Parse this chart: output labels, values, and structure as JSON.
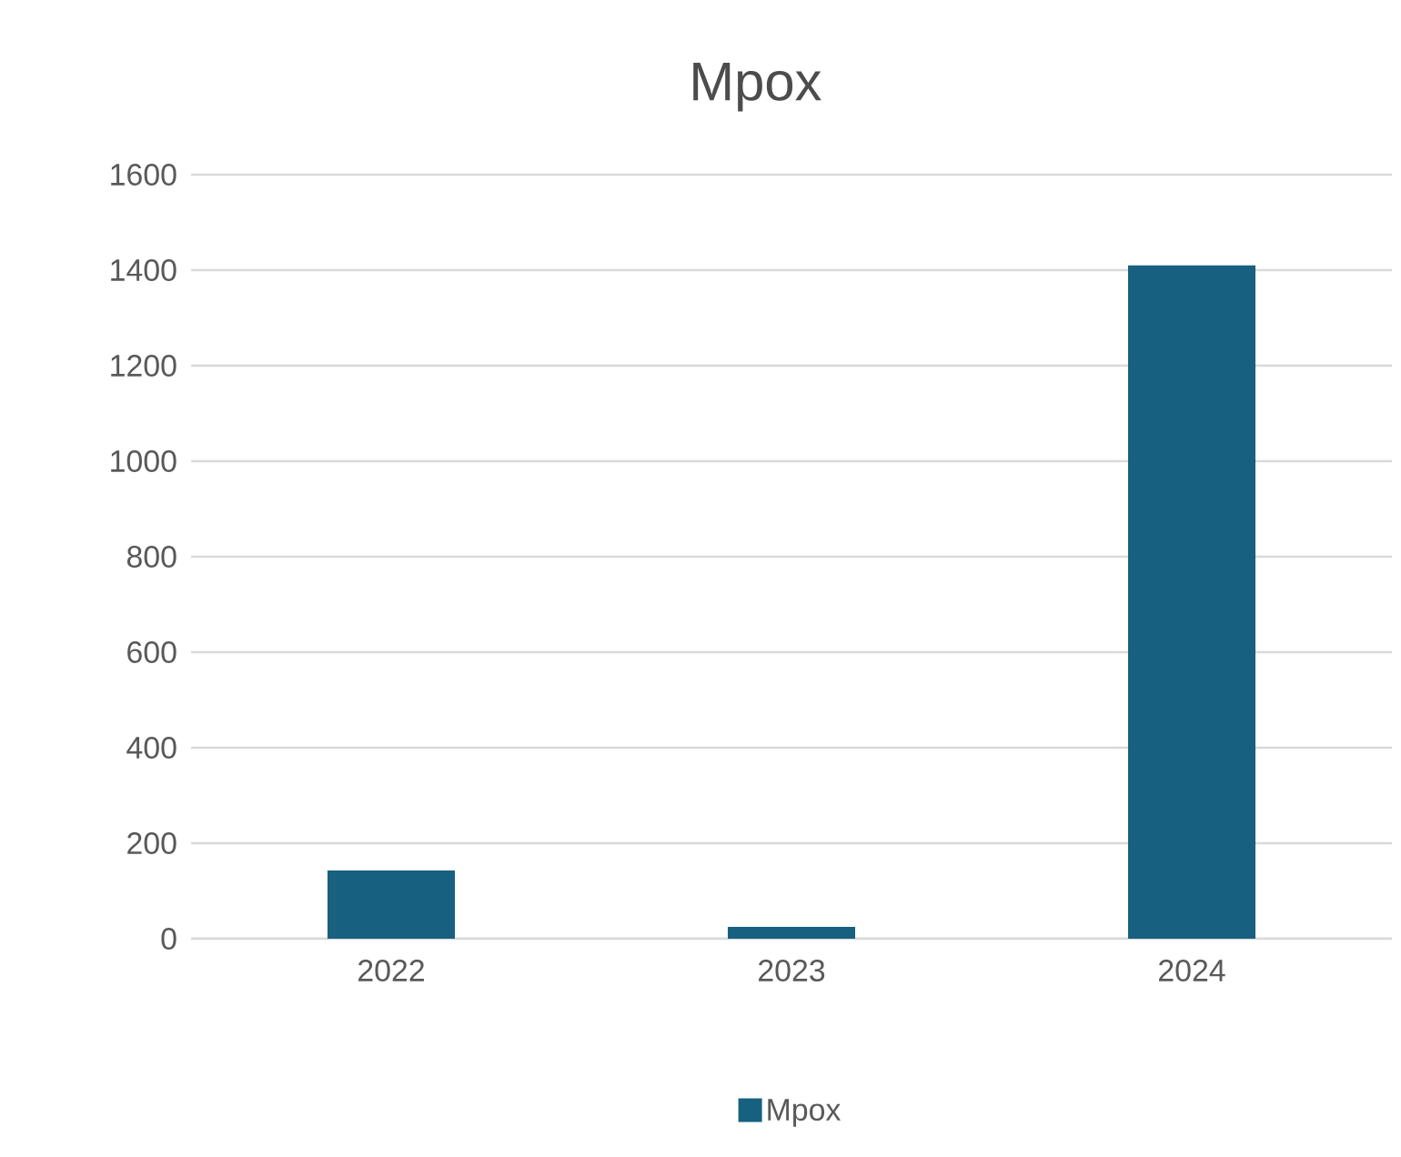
{
  "chart_data": {
    "type": "bar",
    "title": "Mpox",
    "categories": [
      "2022",
      "2023",
      "2024"
    ],
    "series": [
      {
        "name": "Mpox",
        "color": "#17607f",
        "values": [
          143,
          25,
          1410
        ]
      }
    ],
    "ylim": [
      0,
      1600
    ],
    "yticks": [
      0,
      200,
      400,
      600,
      800,
      1000,
      1200,
      1400,
      1600
    ],
    "grid": "y",
    "legend": "bottom"
  }
}
